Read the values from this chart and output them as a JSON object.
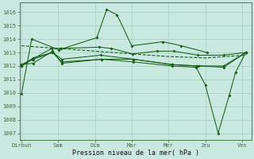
{
  "xlabel": "Pression niveau de la mer( hPa )",
  "xtick_labels": [
    "Dirbun",
    "Sam",
    "Dim",
    "Mar",
    "Mer",
    "Jeu",
    "Ven"
  ],
  "xtick_positions": [
    0,
    1,
    2,
    3,
    4,
    5,
    6
  ],
  "ylim": [
    1006.5,
    1016.7
  ],
  "xlim": [
    -0.05,
    6.25
  ],
  "yticks": [
    1007,
    1008,
    1009,
    1010,
    1011,
    1012,
    1013,
    1014,
    1015,
    1016
  ],
  "bg_color": "#c8e8e0",
  "line_color": "#1a5c1a",
  "grid_color": "#a8ccbf",
  "series": [
    {
      "x": [
        0.0,
        0.28,
        1.02,
        2.05,
        2.32,
        2.6,
        3.0,
        3.85,
        4.35,
        5.05
      ],
      "y": [
        1009.9,
        1014.0,
        1013.2,
        1014.1,
        1016.2,
        1015.8,
        1013.5,
        1013.8,
        1013.5,
        1013.0
      ],
      "has_markers": true
    },
    {
      "x": [
        0.0,
        0.3,
        0.82,
        1.08,
        2.12,
        2.45,
        3.02,
        3.7,
        4.15,
        4.8,
        5.5,
        6.1
      ],
      "y": [
        1012.1,
        1012.5,
        1013.3,
        1013.3,
        1013.4,
        1013.3,
        1012.9,
        1013.1,
        1013.1,
        1012.8,
        1012.8,
        1013.0
      ],
      "has_markers": true
    },
    {
      "x": [
        0.0,
        0.32,
        0.85,
        1.1,
        2.18,
        3.05,
        4.1,
        4.82,
        5.5,
        6.1
      ],
      "y": [
        1012.0,
        1012.6,
        1013.0,
        1012.3,
        1012.5,
        1012.5,
        1012.1,
        1012.0,
        1011.9,
        1013.0
      ],
      "has_markers": true
    },
    {
      "x": [
        0.0,
        0.32,
        0.85,
        1.1,
        2.18,
        3.05,
        4.1,
        4.75,
        5.0,
        5.35,
        5.65,
        5.82,
        6.1
      ],
      "y": [
        1012.1,
        1012.2,
        1013.1,
        1012.2,
        1012.5,
        1012.3,
        1012.0,
        1011.9,
        1010.6,
        1007.0,
        1009.8,
        1011.5,
        1013.0
      ],
      "has_markers": true
    },
    {
      "x": [
        0.0,
        0.32,
        0.85,
        1.1,
        2.15,
        3.05,
        4.1,
        4.78,
        5.5,
        6.1
      ],
      "y": [
        1012.0,
        1012.5,
        1013.0,
        1012.5,
        1012.8,
        1012.5,
        1012.1,
        1012.0,
        1012.0,
        1013.0
      ],
      "has_markers": true
    },
    {
      "x": [
        0.0,
        1.0,
        2.0,
        3.0,
        4.0,
        5.0,
        6.1
      ],
      "y": [
        1013.5,
        1013.3,
        1013.1,
        1012.9,
        1012.7,
        1012.6,
        1012.8
      ],
      "has_markers": false,
      "linestyle": "--"
    }
  ]
}
